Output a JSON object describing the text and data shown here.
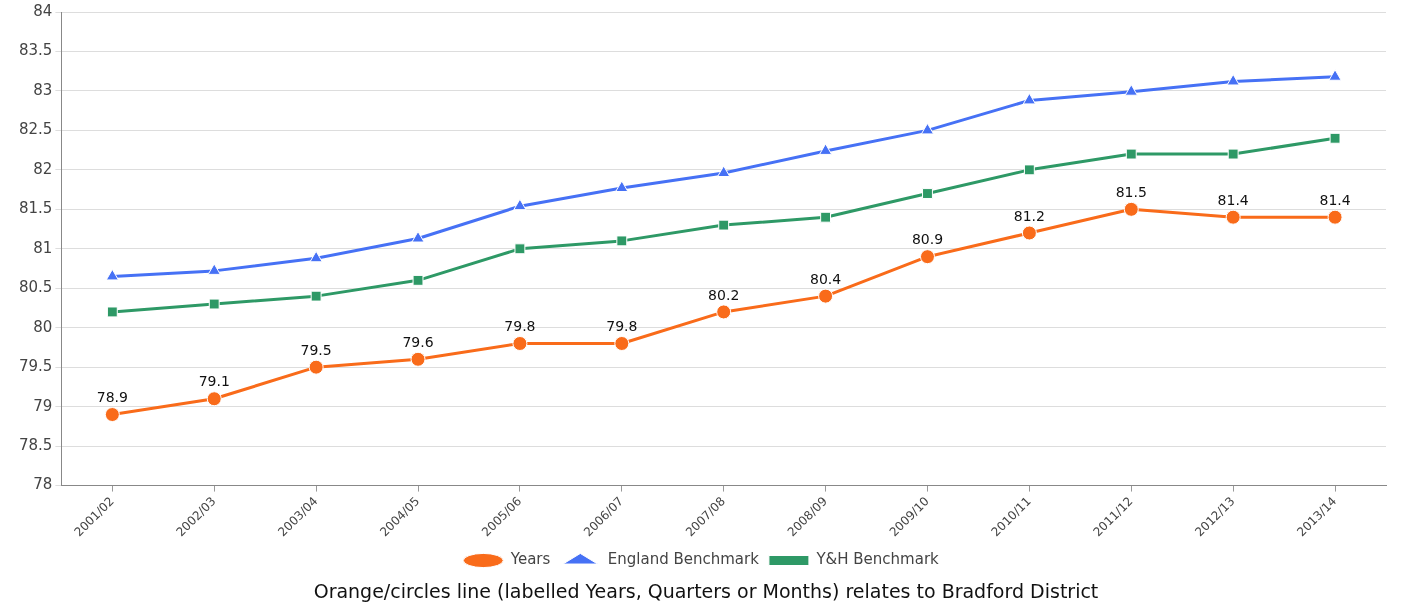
{
  "chart_data": {
    "type": "line",
    "categories": [
      "2001/02",
      "2002/03",
      "2003/04",
      "2004/05",
      "2005/06",
      "2006/07",
      "2007/08",
      "2008/09",
      "2009/10",
      "2010/11",
      "2011/12",
      "2012/13",
      "2013/14"
    ],
    "series": [
      {
        "name": "Years",
        "color": "#f96b1a",
        "marker": "circle",
        "values": [
          78.9,
          79.1,
          79.5,
          79.6,
          79.8,
          79.8,
          80.2,
          80.4,
          80.9,
          81.2,
          81.5,
          81.4,
          81.4
        ],
        "value_labels": [
          "78.9",
          "79.1",
          "79.5",
          "79.6",
          "79.8",
          "79.8",
          "80.2",
          "80.4",
          "80.9",
          "81.2",
          "81.5",
          "81.4",
          "81.4"
        ]
      },
      {
        "name": "England Benchmark",
        "color": "#4671f5",
        "marker": "triangle",
        "values": [
          80.65,
          80.72,
          80.88,
          81.13,
          81.54,
          81.77,
          81.96,
          82.24,
          82.5,
          82.88,
          82.99,
          83.12,
          83.18
        ]
      },
      {
        "name": "Y&H Benchmark",
        "color": "#2e9966",
        "marker": "square",
        "values": [
          80.2,
          80.3,
          80.4,
          80.6,
          81.0,
          81.1,
          81.3,
          81.4,
          81.7,
          82.0,
          82.2,
          82.2,
          82.4
        ]
      }
    ],
    "ylim": [
      78,
      84
    ],
    "yticks": [
      78,
      78.5,
      79,
      79.5,
      80,
      80.5,
      81,
      81.5,
      82,
      82.5,
      83,
      83.5,
      84
    ],
    "grid": "y",
    "legend": "bottom",
    "line_style": "solid",
    "annotations": [
      "Orange/circles line (labelled Years, Quarters or Months) relates to Bradford District"
    ]
  }
}
